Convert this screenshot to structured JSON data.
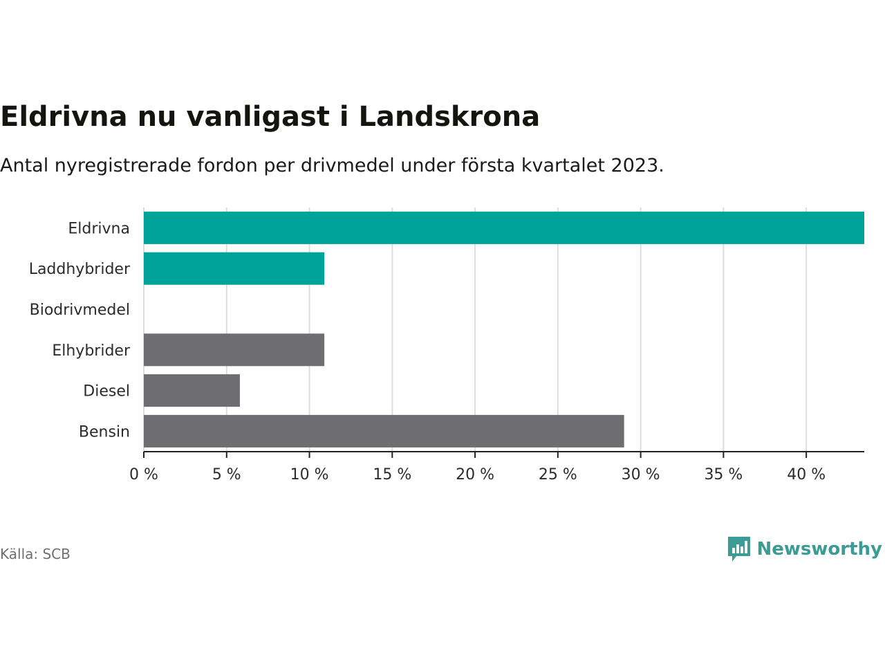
{
  "colors": {
    "highlight": "#00a39a",
    "default": "#6e6d72",
    "grid": "#dddddd",
    "axis": "#222222",
    "brand": "#3a9c94"
  },
  "source": "Källa: SCB",
  "brand": {
    "name": "Newsworthy",
    "icon": "newsworthy-logo-icon"
  },
  "chart_data": {
    "type": "bar",
    "orientation": "horizontal",
    "title": "Eldrivna nu vanligast i Landskrona",
    "subtitle": "Antal nyregistrerade fordon per drivmedel under första kvartalet 2023.",
    "xlabel": "",
    "ylabel": "",
    "unit": "%",
    "xlim": [
      0,
      43.5
    ],
    "grid": true,
    "legend": "none",
    "categories": [
      "Eldrivna",
      "Laddhybrider",
      "Biodrivmedel",
      "Elhybrider",
      "Diesel",
      "Bensin"
    ],
    "values": [
      43.5,
      10.9,
      0,
      10.9,
      5.8,
      29.0
    ],
    "highlight": [
      true,
      true,
      false,
      false,
      false,
      false
    ],
    "x_ticks": [
      0,
      5,
      10,
      15,
      20,
      25,
      30,
      35,
      40
    ],
    "x_tick_labels": [
      "0 %",
      "5 %",
      "10 %",
      "15 %",
      "20 %",
      "25 %",
      "30 %",
      "35 %",
      "40 %"
    ]
  }
}
